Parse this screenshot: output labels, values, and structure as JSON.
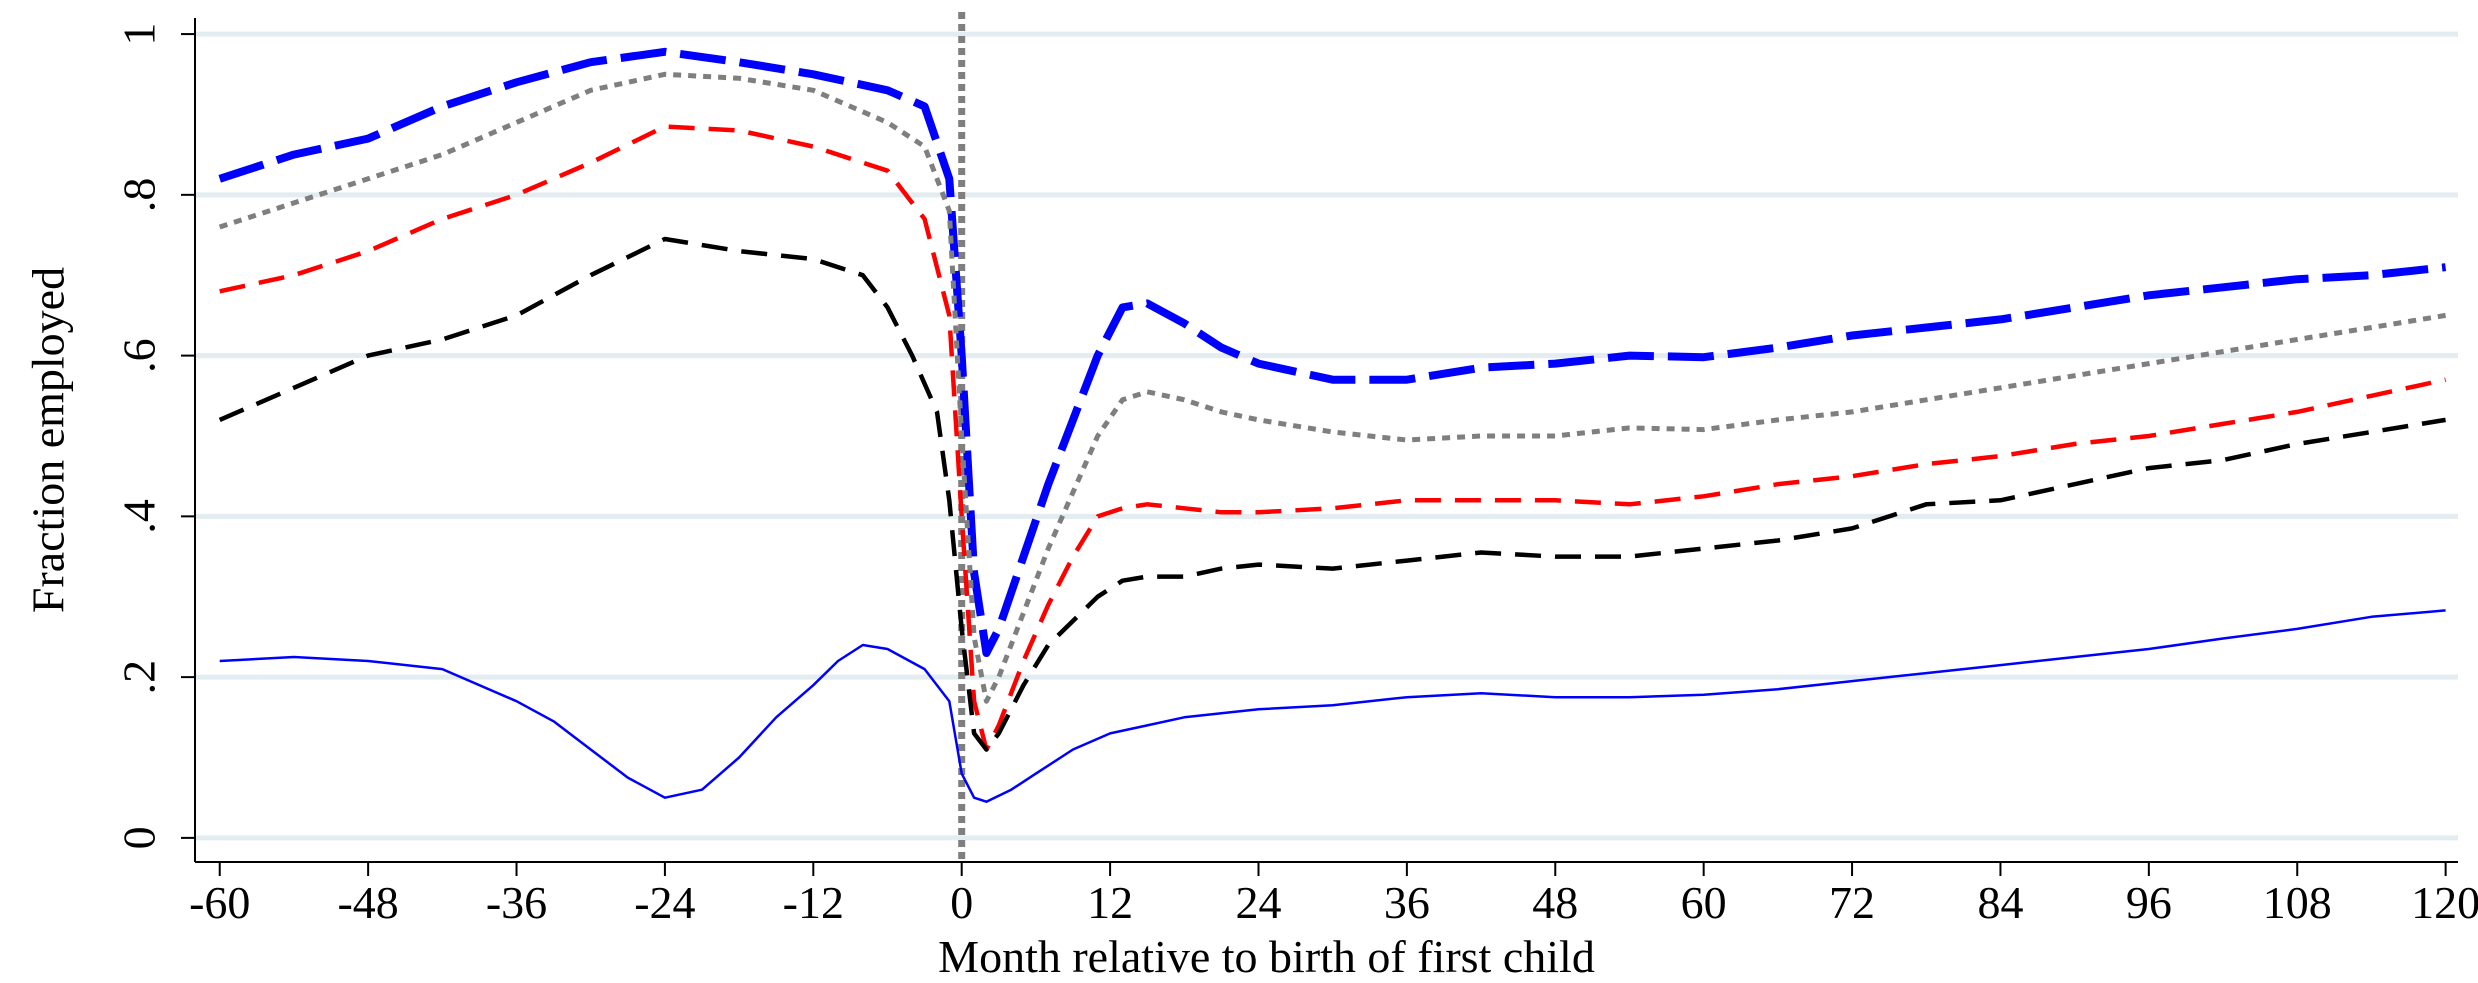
{
  "chart_data": {
    "type": "line",
    "title": "",
    "xlabel": "Month relative to birth of first child",
    "ylabel": "Fraction employed",
    "xlim": [
      -62,
      121
    ],
    "ylim": [
      -0.03,
      1.02
    ],
    "x_ticks": [
      -60,
      -48,
      -36,
      -24,
      -12,
      0,
      12,
      24,
      36,
      48,
      60,
      72,
      84,
      96,
      108,
      120
    ],
    "x_tick_labels": [
      "-60",
      "-48",
      "-36",
      "-24",
      "-12",
      "0",
      "12",
      "24",
      "36",
      "48",
      "60",
      "72",
      "84",
      "96",
      "108",
      "120"
    ],
    "y_ticks": [
      0,
      0.2,
      0.4,
      0.6,
      0.8,
      1
    ],
    "y_tick_labels": [
      "0",
      ".2",
      ".4",
      ".6",
      ".8",
      "1"
    ],
    "grid": "horizontal",
    "legend": "none",
    "reference_line": {
      "x": 0,
      "color": "#7f7f7f",
      "style": "dotted"
    },
    "series": [
      {
        "color": "#0000ff",
        "style": "long-dash",
        "points": [
          [
            -60,
            0.82
          ],
          [
            -54,
            0.85
          ],
          [
            -48,
            0.87
          ],
          [
            -42,
            0.91
          ],
          [
            -36,
            0.94
          ],
          [
            -30,
            0.965
          ],
          [
            -24,
            0.978
          ],
          [
            -18,
            0.965
          ],
          [
            -12,
            0.95
          ],
          [
            -6,
            0.93
          ],
          [
            -3,
            0.91
          ],
          [
            -1,
            0.82
          ],
          [
            0,
            0.6
          ],
          [
            1,
            0.33
          ],
          [
            2,
            0.23
          ],
          [
            3,
            0.26
          ],
          [
            5,
            0.35
          ],
          [
            7,
            0.44
          ],
          [
            9,
            0.52
          ],
          [
            11,
            0.6
          ],
          [
            13,
            0.66
          ],
          [
            15,
            0.665
          ],
          [
            18,
            0.64
          ],
          [
            21,
            0.61
          ],
          [
            24,
            0.59
          ],
          [
            30,
            0.57
          ],
          [
            36,
            0.57
          ],
          [
            42,
            0.585
          ],
          [
            48,
            0.59
          ],
          [
            54,
            0.6
          ],
          [
            60,
            0.598
          ],
          [
            66,
            0.61
          ],
          [
            72,
            0.625
          ],
          [
            78,
            0.635
          ],
          [
            84,
            0.645
          ],
          [
            90,
            0.66
          ],
          [
            96,
            0.675
          ],
          [
            102,
            0.685
          ],
          [
            108,
            0.695
          ],
          [
            114,
            0.7
          ],
          [
            120,
            0.71
          ]
        ]
      },
      {
        "color": "#7f7f7f",
        "style": "dotted",
        "points": [
          [
            -60,
            0.76
          ],
          [
            -54,
            0.79
          ],
          [
            -48,
            0.82
          ],
          [
            -42,
            0.85
          ],
          [
            -36,
            0.89
          ],
          [
            -30,
            0.93
          ],
          [
            -24,
            0.95
          ],
          [
            -18,
            0.945
          ],
          [
            -12,
            0.93
          ],
          [
            -6,
            0.89
          ],
          [
            -3,
            0.86
          ],
          [
            -1,
            0.78
          ],
          [
            0,
            0.5
          ],
          [
            1,
            0.25
          ],
          [
            2,
            0.17
          ],
          [
            3,
            0.2
          ],
          [
            5,
            0.28
          ],
          [
            7,
            0.36
          ],
          [
            9,
            0.43
          ],
          [
            11,
            0.5
          ],
          [
            13,
            0.545
          ],
          [
            15,
            0.555
          ],
          [
            18,
            0.545
          ],
          [
            21,
            0.53
          ],
          [
            24,
            0.52
          ],
          [
            30,
            0.505
          ],
          [
            36,
            0.495
          ],
          [
            42,
            0.5
          ],
          [
            48,
            0.5
          ],
          [
            54,
            0.51
          ],
          [
            60,
            0.508
          ],
          [
            66,
            0.52
          ],
          [
            72,
            0.53
          ],
          [
            78,
            0.545
          ],
          [
            84,
            0.56
          ],
          [
            90,
            0.575
          ],
          [
            96,
            0.59
          ],
          [
            102,
            0.605
          ],
          [
            108,
            0.62
          ],
          [
            114,
            0.635
          ],
          [
            120,
            0.65
          ]
        ]
      },
      {
        "color": "#ff0000",
        "style": "dash",
        "points": [
          [
            -60,
            0.68
          ],
          [
            -54,
            0.7
          ],
          [
            -48,
            0.73
          ],
          [
            -42,
            0.77
          ],
          [
            -36,
            0.8
          ],
          [
            -30,
            0.84
          ],
          [
            -24,
            0.885
          ],
          [
            -18,
            0.88
          ],
          [
            -12,
            0.86
          ],
          [
            -6,
            0.83
          ],
          [
            -3,
            0.77
          ],
          [
            -1,
            0.65
          ],
          [
            0,
            0.4
          ],
          [
            1,
            0.17
          ],
          [
            2,
            0.11
          ],
          [
            3,
            0.14
          ],
          [
            5,
            0.22
          ],
          [
            7,
            0.29
          ],
          [
            9,
            0.35
          ],
          [
            11,
            0.4
          ],
          [
            13,
            0.41
          ],
          [
            15,
            0.415
          ],
          [
            18,
            0.41
          ],
          [
            21,
            0.405
          ],
          [
            24,
            0.405
          ],
          [
            30,
            0.41
          ],
          [
            36,
            0.42
          ],
          [
            42,
            0.42
          ],
          [
            48,
            0.42
          ],
          [
            54,
            0.415
          ],
          [
            60,
            0.425
          ],
          [
            66,
            0.44
          ],
          [
            72,
            0.45
          ],
          [
            78,
            0.465
          ],
          [
            84,
            0.475
          ],
          [
            90,
            0.49
          ],
          [
            96,
            0.5
          ],
          [
            102,
            0.515
          ],
          [
            108,
            0.53
          ],
          [
            114,
            0.55
          ],
          [
            120,
            0.57
          ]
        ]
      },
      {
        "color": "#000000",
        "style": "dash",
        "points": [
          [
            -60,
            0.52
          ],
          [
            -54,
            0.56
          ],
          [
            -48,
            0.6
          ],
          [
            -42,
            0.62
          ],
          [
            -36,
            0.65
          ],
          [
            -30,
            0.7
          ],
          [
            -24,
            0.745
          ],
          [
            -18,
            0.73
          ],
          [
            -12,
            0.72
          ],
          [
            -8,
            0.7
          ],
          [
            -6,
            0.66
          ],
          [
            -4,
            0.6
          ],
          [
            -2,
            0.53
          ],
          [
            -1,
            0.42
          ],
          [
            0,
            0.26
          ],
          [
            1,
            0.13
          ],
          [
            2,
            0.11
          ],
          [
            3,
            0.13
          ],
          [
            5,
            0.19
          ],
          [
            7,
            0.24
          ],
          [
            9,
            0.27
          ],
          [
            11,
            0.3
          ],
          [
            13,
            0.32
          ],
          [
            15,
            0.325
          ],
          [
            18,
            0.325
          ],
          [
            21,
            0.335
          ],
          [
            24,
            0.34
          ],
          [
            30,
            0.335
          ],
          [
            36,
            0.345
          ],
          [
            42,
            0.355
          ],
          [
            48,
            0.35
          ],
          [
            54,
            0.35
          ],
          [
            60,
            0.36
          ],
          [
            66,
            0.37
          ],
          [
            72,
            0.385
          ],
          [
            78,
            0.415
          ],
          [
            84,
            0.42
          ],
          [
            90,
            0.44
          ],
          [
            96,
            0.46
          ],
          [
            102,
            0.47
          ],
          [
            108,
            0.49
          ],
          [
            114,
            0.505
          ],
          [
            120,
            0.52
          ]
        ]
      },
      {
        "color": "#0000ff",
        "style": "solid-thin",
        "points": [
          [
            -60,
            0.22
          ],
          [
            -54,
            0.225
          ],
          [
            -48,
            0.22
          ],
          [
            -42,
            0.21
          ],
          [
            -36,
            0.17
          ],
          [
            -33,
            0.145
          ],
          [
            -30,
            0.11
          ],
          [
            -27,
            0.075
          ],
          [
            -24,
            0.05
          ],
          [
            -21,
            0.06
          ],
          [
            -18,
            0.1
          ],
          [
            -15,
            0.15
          ],
          [
            -12,
            0.19
          ],
          [
            -10,
            0.22
          ],
          [
            -8,
            0.24
          ],
          [
            -6,
            0.235
          ],
          [
            -3,
            0.21
          ],
          [
            -1,
            0.17
          ],
          [
            0,
            0.08
          ],
          [
            1,
            0.05
          ],
          [
            2,
            0.045
          ],
          [
            4,
            0.06
          ],
          [
            6,
            0.08
          ],
          [
            9,
            0.11
          ],
          [
            12,
            0.13
          ],
          [
            15,
            0.14
          ],
          [
            18,
            0.15
          ],
          [
            24,
            0.16
          ],
          [
            30,
            0.165
          ],
          [
            36,
            0.175
          ],
          [
            42,
            0.18
          ],
          [
            48,
            0.175
          ],
          [
            54,
            0.175
          ],
          [
            60,
            0.178
          ],
          [
            66,
            0.185
          ],
          [
            72,
            0.195
          ],
          [
            78,
            0.205
          ],
          [
            84,
            0.215
          ],
          [
            90,
            0.225
          ],
          [
            96,
            0.235
          ],
          [
            102,
            0.248
          ],
          [
            108,
            0.26
          ],
          [
            114,
            0.275
          ],
          [
            120,
            0.283
          ]
        ]
      }
    ]
  }
}
